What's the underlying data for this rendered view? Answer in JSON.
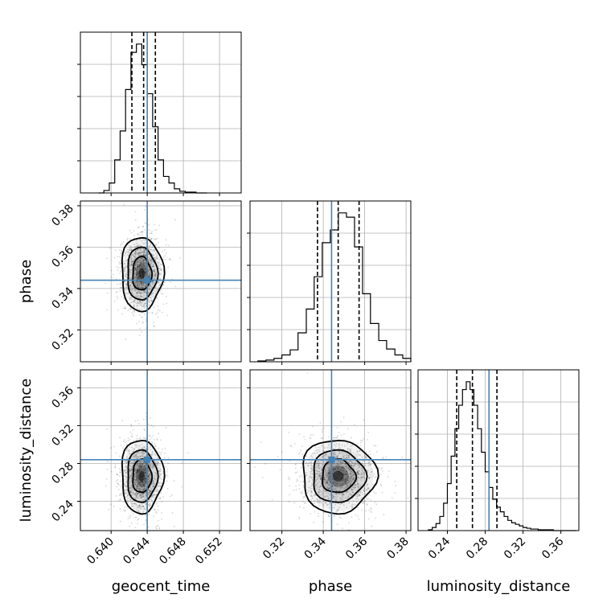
{
  "chart_data": {
    "type": "corner",
    "parameters": [
      "geocent_time",
      "phase",
      "luminosity_distance"
    ],
    "truths": {
      "geocent_time": 0.644,
      "phase": 0.344,
      "luminosity_distance": 0.284
    },
    "ranges": {
      "geocent_time": [
        0.6366,
        0.6544
      ],
      "phase": [
        0.3046,
        0.3823
      ],
      "luminosity_distance": [
        0.209,
        0.379
      ]
    },
    "ticks": {
      "geocent_time": [
        "0.640",
        "0.644",
        "0.648",
        "0.652"
      ],
      "phase": [
        "0.32",
        "0.34",
        "0.36",
        "0.38"
      ],
      "luminosity_distance": [
        "0.24",
        "0.28",
        "0.32",
        "0.36"
      ]
    },
    "diag_ticks_y": [
      "0.32",
      "0.34",
      "0.36",
      "0.38"
    ],
    "diag_ticks_lum": [
      "0.24",
      "0.28",
      "0.32",
      "0.36"
    ],
    "histograms": {
      "geocent_time": {
        "quantiles": [
          0.6423,
          0.6436,
          0.6449
        ],
        "edges": [
          0.6386,
          0.6392,
          0.6398,
          0.6404,
          0.641,
          0.6416,
          0.6422,
          0.6428,
          0.6434,
          0.644,
          0.6446,
          0.6452,
          0.6458,
          0.6464,
          0.647,
          0.6476,
          0.6482,
          0.6488,
          0.6494,
          0.65,
          0.6506
        ],
        "counts": [
          0,
          3,
          12,
          40,
          75,
          125,
          170,
          180,
          155,
          120,
          80,
          40,
          20,
          12,
          5,
          2,
          1,
          1,
          0,
          0
        ]
      },
      "phase": {
        "quantiles": [
          0.3372,
          0.3472,
          0.3573
        ],
        "edges": [
          0.3084,
          0.3123,
          0.3162,
          0.32,
          0.324,
          0.3278,
          0.3318,
          0.3356,
          0.3395,
          0.3434,
          0.3473,
          0.3512,
          0.3551,
          0.359,
          0.3628,
          0.3668,
          0.3706,
          0.3746,
          0.3784,
          0.3823
        ],
        "counts": [
          1,
          2,
          4,
          8,
          14,
          34,
          62,
          100,
          140,
          155,
          175,
          170,
          135,
          80,
          45,
          25,
          15,
          8,
          4
        ]
      },
      "luminosity_distance": {
        "quantiles": [
          0.2499,
          0.2665,
          0.2924
        ],
        "edges": [
          0.22,
          0.224,
          0.228,
          0.232,
          0.236,
          0.24,
          0.244,
          0.248,
          0.252,
          0.256,
          0.26,
          0.264,
          0.268,
          0.272,
          0.276,
          0.28,
          0.284,
          0.288,
          0.292,
          0.296,
          0.3,
          0.304,
          0.308,
          0.312,
          0.316,
          0.32,
          0.324,
          0.328,
          0.332,
          0.336,
          0.34,
          0.344,
          0.348,
          0.352,
          0.356,
          0.36,
          0.364,
          0.368,
          0.372,
          0.376
        ],
        "counts": [
          1,
          4,
          9,
          18,
          35,
          60,
          95,
          130,
          160,
          180,
          190,
          180,
          160,
          130,
          100,
          75,
          55,
          40,
          30,
          24,
          18,
          13,
          10,
          8,
          6,
          4,
          3,
          2,
          2,
          1,
          1,
          1,
          1,
          0,
          0,
          0,
          0,
          0,
          0
        ]
      }
    },
    "pairs": [
      {
        "x": "geocent_time",
        "y": "phase",
        "center": [
          0.6434,
          0.3472
        ],
        "sigma": [
          0.0011,
          0.0085
        ]
      },
      {
        "x": "geocent_time",
        "y": "luminosity_distance",
        "center": [
          0.6434,
          0.2665
        ],
        "sigma": [
          0.0011,
          0.0185
        ]
      },
      {
        "x": "phase",
        "y": "luminosity_distance",
        "center": [
          0.3472,
          0.2665
        ],
        "sigma": [
          0.0085,
          0.0185
        ]
      }
    ]
  }
}
